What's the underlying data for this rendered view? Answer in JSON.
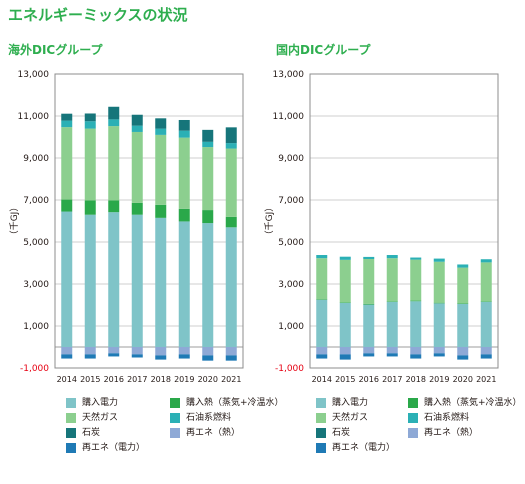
{
  "title": "エネルギーミックスの状況",
  "colors": {
    "purchased_electricity": "#7fc4c8",
    "natural_gas": "#8ccf8f",
    "coal": "#16757a",
    "renewable_electricity": "#1f7ab5",
    "purchased_heat": "#2aa84a",
    "oil_fuel": "#2bb0b5",
    "renewable_heat": "#8ea9d6"
  },
  "legend": [
    {
      "key": "purchased_electricity",
      "label": "購入電力"
    },
    {
      "key": "purchased_heat",
      "label": "購入熱（蒸気+冷温水）"
    },
    {
      "key": "natural_gas",
      "label": "天然ガス"
    },
    {
      "key": "oil_fuel",
      "label": "石油系燃料"
    },
    {
      "key": "coal",
      "label": "石炭"
    },
    {
      "key": "renewable_heat",
      "label": "再エネ（熱）"
    },
    {
      "key": "renewable_electricity",
      "label": "再エネ（電力）"
    }
  ],
  "chart_data": [
    {
      "type": "bar",
      "stacked": true,
      "title": "海外DICグループ",
      "ylabel": "（千GJ）",
      "ylim": [
        -1000,
        13000
      ],
      "yticks": [
        "-1,000",
        "1,000",
        "3,000",
        "5,000",
        "7,000",
        "9,000",
        "11,000",
        "13,000"
      ],
      "categories": [
        "2014",
        "2015",
        "2016",
        "2017",
        "2018",
        "2019",
        "2020",
        "2021"
      ],
      "series": [
        {
          "key": "purchased_electricity",
          "name": "購入電力",
          "values": [
            6450,
            6300,
            6420,
            6300,
            6150,
            5980,
            5900,
            5700
          ]
        },
        {
          "key": "purchased_heat",
          "name": "購入熱（蒸気+冷温水）",
          "values": [
            570,
            680,
            560,
            560,
            620,
            600,
            620,
            500
          ]
        },
        {
          "key": "natural_gas",
          "name": "天然ガス",
          "values": [
            3450,
            3420,
            3540,
            3380,
            3330,
            3390,
            3000,
            3250
          ]
        },
        {
          "key": "oil_fuel",
          "name": "石油系燃料",
          "values": [
            310,
            350,
            320,
            300,
            300,
            330,
            250,
            260
          ]
        },
        {
          "key": "coal",
          "name": "石炭",
          "values": [
            330,
            370,
            600,
            520,
            490,
            510,
            570,
            750
          ]
        },
        {
          "key": "renewable_heat",
          "name": "再エネ（熱）",
          "values": [
            -350,
            -350,
            -300,
            -350,
            -400,
            -350,
            -400,
            -400
          ]
        },
        {
          "key": "renewable_electricity",
          "name": "再エネ（電力）",
          "values": [
            -200,
            -200,
            -150,
            -150,
            -200,
            -200,
            -250,
            -250
          ]
        }
      ]
    },
    {
      "type": "bar",
      "stacked": true,
      "title": "国内DICグループ",
      "ylabel": "（千GJ）",
      "ylim": [
        -1000,
        13000
      ],
      "yticks": [
        "-1,000",
        "1,000",
        "3,000",
        "5,000",
        "7,000",
        "9,000",
        "11,000",
        "13,000"
      ],
      "categories": [
        "2014",
        "2015",
        "2016",
        "2017",
        "2018",
        "2019",
        "2020",
        "2021"
      ],
      "series": [
        {
          "key": "purchased_electricity",
          "name": "購入電力",
          "values": [
            2250,
            2100,
            2020,
            2150,
            2180,
            2080,
            2050,
            2150
          ]
        },
        {
          "key": "purchased_heat",
          "name": "購入熱（蒸気+冷温水）",
          "values": [
            30,
            30,
            30,
            30,
            30,
            30,
            30,
            30
          ]
        },
        {
          "key": "natural_gas",
          "name": "天然ガス",
          "values": [
            1950,
            2020,
            2140,
            2050,
            1950,
            1950,
            1700,
            1850
          ]
        },
        {
          "key": "oil_fuel",
          "name": "石油系燃料",
          "values": [
            150,
            150,
            100,
            150,
            100,
            150,
            150,
            150
          ]
        },
        {
          "key": "coal",
          "name": "石炭",
          "values": [
            0,
            0,
            0,
            0,
            0,
            0,
            0,
            0
          ]
        },
        {
          "key": "renewable_heat",
          "name": "再エネ（熱）",
          "values": [
            -350,
            -350,
            -300,
            -300,
            -350,
            -300,
            -400,
            -350
          ]
        },
        {
          "key": "renewable_electricity",
          "name": "再エネ（電力）",
          "values": [
            -200,
            -250,
            -150,
            -150,
            -200,
            -150,
            -200,
            -200
          ]
        }
      ]
    }
  ]
}
